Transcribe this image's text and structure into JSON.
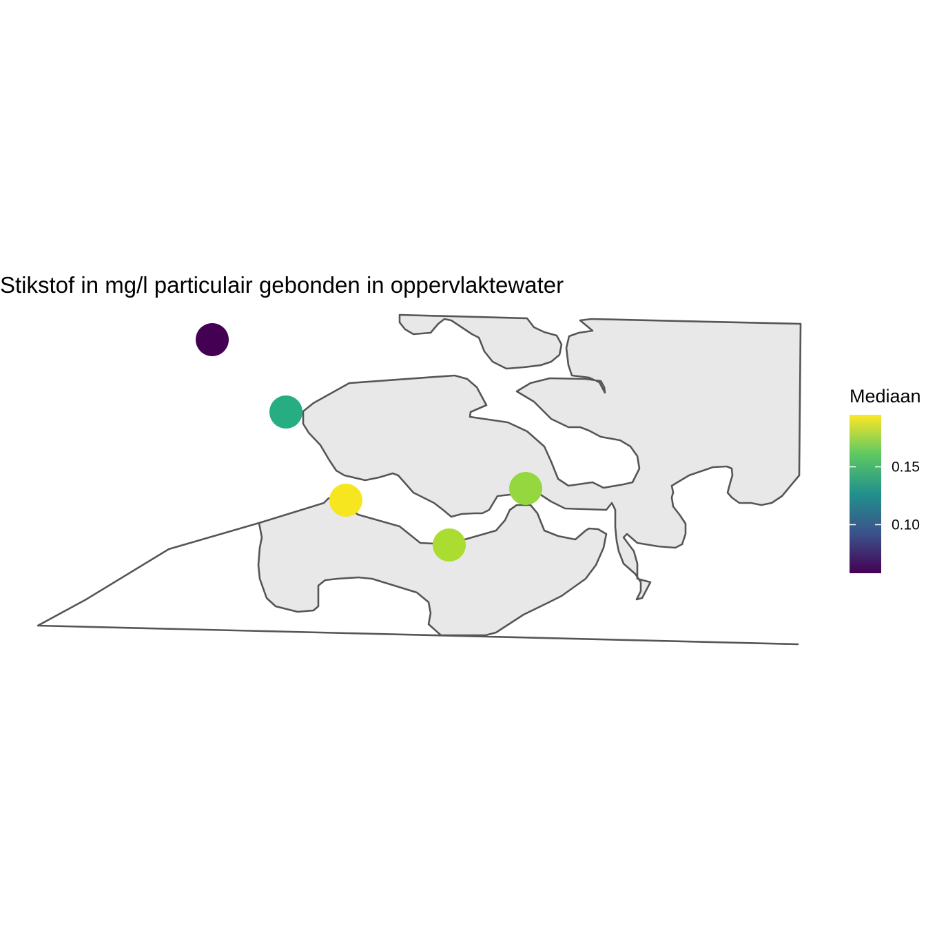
{
  "title": "Stikstof in mg/l particulair gebonden in oppervlaktewater",
  "legend": {
    "title": "Mediaan",
    "ticks": [
      {
        "value": 0.15,
        "label": "0.15"
      },
      {
        "value": 0.1,
        "label": "0.10"
      }
    ],
    "range": [
      0.058,
      0.195
    ],
    "palette": [
      "#440154",
      "#3b528b",
      "#21908c",
      "#5dc863",
      "#fde725"
    ]
  },
  "colors": {
    "land_fill": "#e8e8e8",
    "land_stroke": "#555555",
    "water": "#ffffff"
  },
  "stations": [
    {
      "name": "",
      "value": 0.058,
      "color": "#440154"
    },
    {
      "name": "",
      "value": 0.135,
      "color": "#26ad81"
    },
    {
      "name": "",
      "value": 0.195,
      "color": "#f6e620"
    },
    {
      "name": "",
      "value": 0.178,
      "color": "#abdc31"
    },
    {
      "name": "",
      "value": 0.172,
      "color": "#95d73e"
    }
  ]
}
